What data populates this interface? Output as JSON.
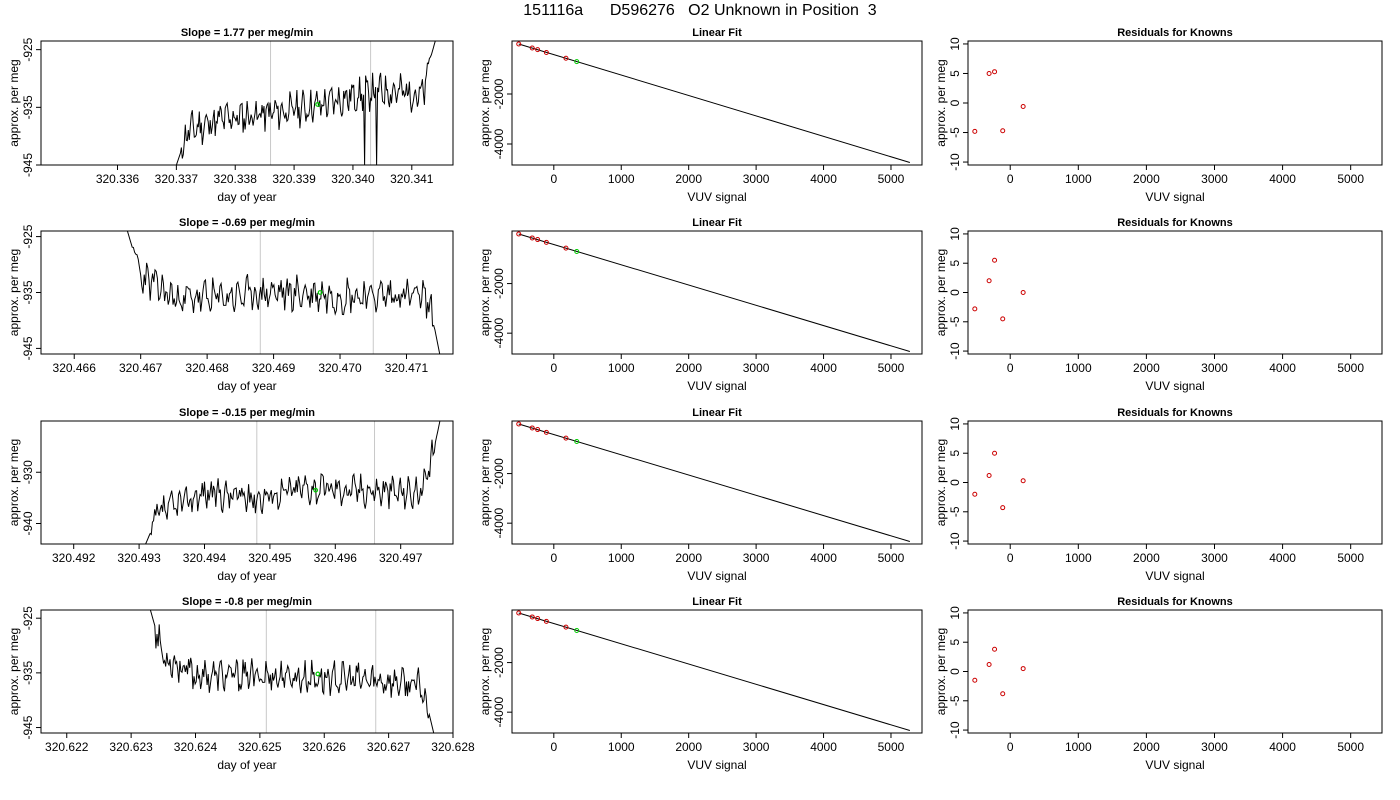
{
  "figure": {
    "title": "151116a      D596276   O2 Unknown in Position  3"
  },
  "colors": {
    "line": "#000000",
    "known_points": "#cc0000",
    "unknown_point": "#00cc00",
    "vertical_markers": "#c8c8c8"
  },
  "chart_data": [
    {
      "row": 1,
      "type": "line",
      "title": "Slope =  1.77  per meg/min",
      "xlabel": "day of year",
      "ylabel": "approx. per meg",
      "xlim": [
        320.3347,
        320.3417
      ],
      "ylim": [
        -945,
        -923.5
      ],
      "xticks": [
        "320.336",
        "320.337",
        "320.338",
        "320.339",
        "320.340",
        "320.341"
      ],
      "yticks": [
        "-925",
        "-935",
        "-945"
      ],
      "vlines": [
        320.3386,
        320.3403
      ],
      "start": 320.337,
      "end": 320.3414,
      "noise_amp": 2.2,
      "seed": 11,
      "trend": [
        [
          320.337,
          -945
        ],
        [
          320.3372,
          -939
        ],
        [
          320.3378,
          -937
        ],
        [
          320.3386,
          -936
        ],
        [
          320.3395,
          -934.5
        ],
        [
          320.34,
          -933
        ],
        [
          320.3405,
          -932
        ],
        [
          320.341,
          -932.5
        ],
        [
          320.3412,
          -933
        ],
        [
          320.3413,
          -927
        ],
        [
          320.3414,
          -923.5
        ]
      ],
      "dips": [
        [
          320.3402,
          -945
        ],
        [
          320.3404,
          -945
        ]
      ],
      "marker": [
        320.3394,
        -934.5
      ]
    },
    {
      "row": 1,
      "type": "scatter+line",
      "title": "Linear Fit",
      "xlabel": "VUV signal",
      "ylabel": "approx. per meg",
      "xlim": [
        -620,
        5460
      ],
      "ylim": [
        -4840,
        120
      ],
      "xticks": [
        "0",
        "1000",
        "2000",
        "3000",
        "4000",
        "5000"
      ],
      "yticks": [
        "-2000",
        "-4000"
      ],
      "fit_line": [
        [
          -520,
          0
        ],
        [
          5280,
          -4740
        ]
      ],
      "knowns": [
        [
          -520,
          0
        ],
        [
          -320,
          -160
        ],
        [
          -240,
          -225
        ],
        [
          -110,
          -340
        ],
        [
          180,
          -570
        ]
      ],
      "unknown": [
        [
          340,
          -705
        ]
      ]
    },
    {
      "row": 1,
      "type": "scatter",
      "title": "Residuals for Knowns",
      "xlabel": "VUV signal",
      "ylabel": "approx. per meg",
      "xlim": [
        -620,
        5460
      ],
      "ylim": [
        -10.5,
        10.5
      ],
      "xticks": [
        "0",
        "1000",
        "2000",
        "3000",
        "4000",
        "5000"
      ],
      "yticks": [
        "-10",
        "-5",
        "0",
        "5",
        "10"
      ],
      "points": [
        [
          -520,
          -4.8
        ],
        [
          -310,
          5
        ],
        [
          -230,
          5.3
        ],
        [
          -110,
          -4.7
        ],
        [
          190,
          -0.6
        ]
      ]
    },
    {
      "row": 2,
      "type": "line",
      "title": "Slope =  -0.69  per meg/min",
      "xlabel": "day of year",
      "ylabel": "approx. per meg",
      "xlim": [
        320.4655,
        320.4717
      ],
      "ylim": [
        -946,
        -924
      ],
      "xticks": [
        "320.466",
        "320.467",
        "320.468",
        "320.469",
        "320.470",
        "320.471"
      ],
      "yticks": [
        "-925",
        "-935",
        "-945"
      ],
      "vlines": [
        320.4688,
        320.4705
      ],
      "start": 320.4668,
      "end": 320.4715,
      "noise_amp": 2.4,
      "seed": 23,
      "trend": [
        [
          320.4668,
          -924
        ],
        [
          320.467,
          -932
        ],
        [
          320.4675,
          -936
        ],
        [
          320.468,
          -936
        ],
        [
          320.469,
          -935
        ],
        [
          320.47,
          -935.5
        ],
        [
          320.471,
          -935.5
        ],
        [
          320.4713,
          -936
        ],
        [
          320.4714,
          -940
        ],
        [
          320.4715,
          -946
        ]
      ],
      "dips": [],
      "marker": [
        320.4697,
        -935
      ]
    },
    {
      "row": 2,
      "type": "scatter+line",
      "title": "Linear Fit",
      "xlabel": "VUV signal",
      "ylabel": "approx. per meg",
      "xlim": [
        -620,
        5460
      ],
      "ylim": [
        -4840,
        120
      ],
      "xticks": [
        "0",
        "1000",
        "2000",
        "3000",
        "4000",
        "5000"
      ],
      "yticks": [
        "-2000",
        "-4000"
      ],
      "fit_line": [
        [
          -520,
          0
        ],
        [
          5280,
          -4740
        ]
      ],
      "knowns": [
        [
          -520,
          0
        ],
        [
          -320,
          -160
        ],
        [
          -240,
          -225
        ],
        [
          -110,
          -340
        ],
        [
          180,
          -570
        ]
      ],
      "unknown": [
        [
          340,
          -705
        ]
      ]
    },
    {
      "row": 2,
      "type": "scatter",
      "title": "Residuals for Knowns",
      "xlabel": "VUV signal",
      "ylabel": "approx. per meg",
      "xlim": [
        -620,
        5460
      ],
      "ylim": [
        -10.5,
        10.5
      ],
      "xticks": [
        "0",
        "1000",
        "2000",
        "3000",
        "4000",
        "5000"
      ],
      "yticks": [
        "-10",
        "-5",
        "0",
        "5",
        "10"
      ],
      "points": [
        [
          -520,
          -2.8
        ],
        [
          -310,
          2
        ],
        [
          -230,
          5.5
        ],
        [
          -110,
          -4.5
        ],
        [
          190,
          0
        ]
      ]
    },
    {
      "row": 3,
      "type": "line",
      "title": "Slope =  -0.15  per meg/min",
      "xlabel": "day of year",
      "ylabel": "approx. per meg",
      "xlim": [
        320.4915,
        320.4978
      ],
      "ylim": [
        -944,
        -920
      ],
      "xticks": [
        "320.492",
        "320.493",
        "320.494",
        "320.495",
        "320.496",
        "320.497"
      ],
      "yticks": [
        "-930",
        "-940"
      ],
      "vlines": [
        320.4948,
        320.4966
      ],
      "start": 320.4931,
      "end": 320.4976,
      "noise_amp": 2.3,
      "seed": 37,
      "trend": [
        [
          320.4931,
          -944
        ],
        [
          320.4933,
          -938
        ],
        [
          320.494,
          -934
        ],
        [
          320.4948,
          -935
        ],
        [
          320.4955,
          -933
        ],
        [
          320.4965,
          -933.5
        ],
        [
          320.4973,
          -934
        ],
        [
          320.4974,
          -932
        ],
        [
          320.4976,
          -920
        ]
      ],
      "dips": [],
      "marker": [
        320.4957,
        -933.5
      ]
    },
    {
      "row": 3,
      "type": "scatter+line",
      "title": "Linear Fit",
      "xlabel": "VUV signal",
      "ylabel": "approx. per meg",
      "xlim": [
        -620,
        5460
      ],
      "ylim": [
        -4840,
        120
      ],
      "xticks": [
        "0",
        "1000",
        "2000",
        "3000",
        "4000",
        "5000"
      ],
      "yticks": [
        "-2000",
        "-4000"
      ],
      "fit_line": [
        [
          -520,
          0
        ],
        [
          5280,
          -4740
        ]
      ],
      "knowns": [
        [
          -520,
          0
        ],
        [
          -320,
          -160
        ],
        [
          -240,
          -225
        ],
        [
          -110,
          -340
        ],
        [
          180,
          -570
        ]
      ],
      "unknown": [
        [
          340,
          -705
        ]
      ]
    },
    {
      "row": 3,
      "type": "scatter",
      "title": "Residuals for Knowns",
      "xlabel": "VUV signal",
      "ylabel": "approx. per meg",
      "xlim": [
        -620,
        5460
      ],
      "ylim": [
        -10.5,
        10.5
      ],
      "xticks": [
        "0",
        "1000",
        "2000",
        "3000",
        "4000",
        "5000"
      ],
      "yticks": [
        "-10",
        "-5",
        "0",
        "5",
        "10"
      ],
      "points": [
        [
          -520,
          -2
        ],
        [
          -310,
          1.2
        ],
        [
          -230,
          5
        ],
        [
          -110,
          -4.3
        ],
        [
          190,
          0.3
        ]
      ]
    },
    {
      "row": 4,
      "type": "line",
      "title": "Slope =  -0.8  per meg/min",
      "xlabel": "day of year",
      "ylabel": "approx. per meg",
      "xlim": [
        320.6216,
        320.628
      ],
      "ylim": [
        -946,
        -923.5
      ],
      "xticks": [
        "320.622",
        "320.623",
        "320.624",
        "320.625",
        "320.626",
        "320.627",
        "320.628"
      ],
      "yticks": [
        "-925",
        "-935",
        "-945"
      ],
      "vlines": [
        320.6251,
        320.6268
      ],
      "start": 320.6233,
      "end": 320.6277,
      "noise_amp": 2.2,
      "seed": 53,
      "trend": [
        [
          320.6233,
          -923.5
        ],
        [
          320.6235,
          -932
        ],
        [
          320.624,
          -935.5
        ],
        [
          320.625,
          -935.5
        ],
        [
          320.626,
          -936
        ],
        [
          320.627,
          -936.5
        ],
        [
          320.6275,
          -937.5
        ],
        [
          320.6276,
          -941
        ],
        [
          320.6277,
          -946
        ]
      ],
      "dips": [],
      "marker": [
        320.6259,
        -935.2
      ]
    },
    {
      "row": 4,
      "type": "scatter+line",
      "title": "Linear Fit",
      "xlabel": "VUV signal",
      "ylabel": "approx. per meg",
      "xlim": [
        -620,
        5460
      ],
      "ylim": [
        -4840,
        120
      ],
      "xticks": [
        "0",
        "1000",
        "2000",
        "3000",
        "4000",
        "5000"
      ],
      "yticks": [
        "-2000",
        "-4000"
      ],
      "fit_line": [
        [
          -520,
          0
        ],
        [
          5280,
          -4740
        ]
      ],
      "knowns": [
        [
          -520,
          0
        ],
        [
          -320,
          -160
        ],
        [
          -240,
          -225
        ],
        [
          -110,
          -340
        ],
        [
          180,
          -570
        ]
      ],
      "unknown": [
        [
          340,
          -705
        ]
      ]
    },
    {
      "row": 4,
      "type": "scatter",
      "title": "Residuals for Knowns",
      "xlabel": "VUV signal",
      "ylabel": "approx. per meg",
      "xlim": [
        -620,
        5460
      ],
      "ylim": [
        -10.5,
        10.5
      ],
      "xticks": [
        "0",
        "1000",
        "2000",
        "3000",
        "4000",
        "5000"
      ],
      "yticks": [
        "-10",
        "-5",
        "0",
        "5",
        "10"
      ],
      "points": [
        [
          -520,
          -1.5
        ],
        [
          -310,
          1.2
        ],
        [
          -230,
          3.8
        ],
        [
          -110,
          -3.8
        ],
        [
          190,
          0.5
        ]
      ]
    }
  ]
}
